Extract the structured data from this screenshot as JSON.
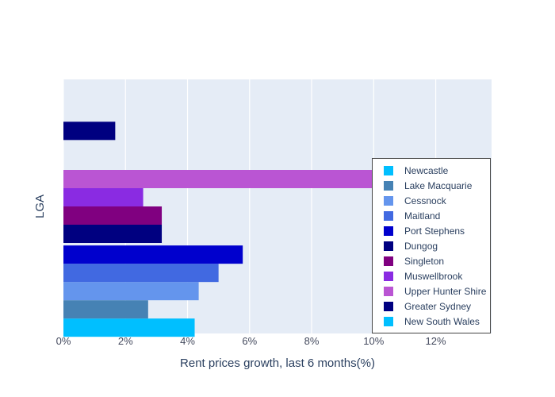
{
  "chart_data": {
    "type": "bar",
    "orientation": "horizontal",
    "xlabel": "Rent prices growth, last 6 months(%)",
    "ylabel": "LGA",
    "xlim": [
      0,
      13.8
    ],
    "x_ticks": [
      {
        "value": 0,
        "label": "0%"
      },
      {
        "value": 2,
        "label": "2%"
      },
      {
        "value": 4,
        "label": "4%"
      },
      {
        "value": 6,
        "label": "6%"
      },
      {
        "value": 8,
        "label": "8%"
      },
      {
        "value": 10,
        "label": "10%"
      },
      {
        "value": 12,
        "label": "12%"
      }
    ],
    "grid": true,
    "legend_placement": "bottom-right",
    "series": [
      {
        "name": "Newcastle",
        "group": 0,
        "value": 4.23,
        "color": "#00bfff"
      },
      {
        "name": "Lake Macquarie",
        "group": 0,
        "value": 2.73,
        "color": "#4682b4"
      },
      {
        "name": "Cessnock",
        "group": 0,
        "value": 4.36,
        "color": "#6495ed"
      },
      {
        "name": "Maitland",
        "group": 0,
        "value": 5.0,
        "color": "#4169e1"
      },
      {
        "name": "Port Stephens",
        "group": 0,
        "value": 5.78,
        "color": "#0000cd"
      },
      {
        "name": "Dungog",
        "group": 1,
        "value": 3.17,
        "color": "#000080"
      },
      {
        "name": "Singleton",
        "group": 1,
        "value": 3.17,
        "color": "#800080"
      },
      {
        "name": "Muswellbrook",
        "group": 1,
        "value": 2.57,
        "color": "#8a2be2"
      },
      {
        "name": "Upper Hunter Shire",
        "group": 1,
        "value": 13.18,
        "color": "#ba55d3"
      },
      {
        "name": "Greater Sydney",
        "group": 2,
        "value": 1.67,
        "color": "#000080"
      },
      {
        "name": "New South Wales",
        "group": 2,
        "value": 0,
        "color": "#00bfff"
      }
    ]
  }
}
